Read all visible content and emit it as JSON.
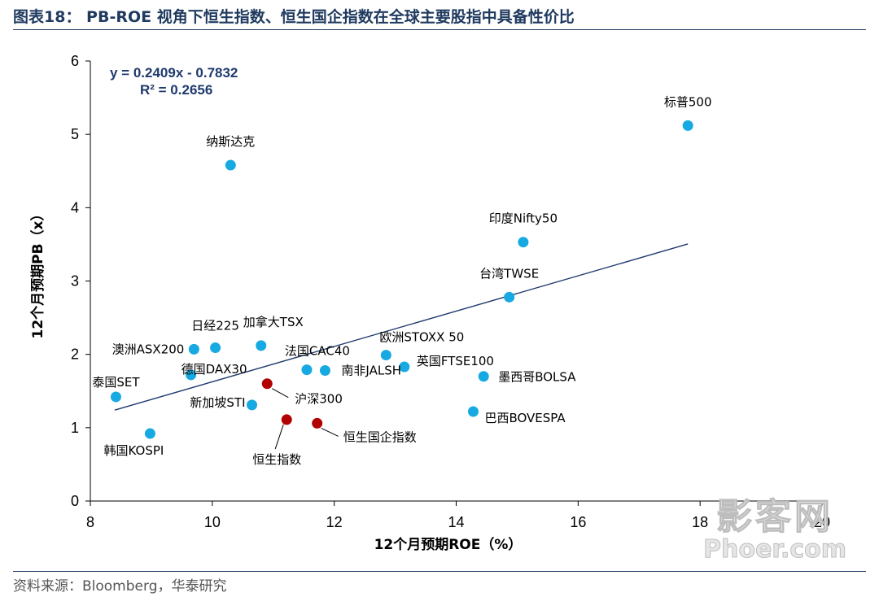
{
  "header": {
    "title": "图表18： PB-ROE 视角下恒生指数、恒生国企指数在全球主要股指中具备性价比"
  },
  "footer": {
    "source": "资料来源：Bloomberg，华泰研究"
  },
  "watermark": {
    "text_cn": "影客网",
    "text_en": "Phoer.com"
  },
  "chart_data": {
    "type": "scatter",
    "xlabel": "12个月预期ROE（%）",
    "ylabel": "12个月预期PB（x）",
    "xlim": [
      8,
      20
    ],
    "ylim": [
      0,
      6
    ],
    "xticks": [
      "8",
      "10",
      "12",
      "14",
      "16",
      "18",
      "20"
    ],
    "yticks": [
      "0",
      "1",
      "2",
      "3",
      "4",
      "5",
      "6"
    ],
    "grid": false,
    "colors": {
      "markets": "#17a9e1",
      "highlight": "#b00000",
      "trendline": "#1f3a6e"
    },
    "trendline": {
      "equation": "y = 0.2409x - 0.7832",
      "r2": "R² = 0.2656",
      "slope": 0.2409,
      "intercept": -0.7832,
      "x_range": [
        8.4,
        17.8
      ]
    },
    "points": [
      {
        "label": "标普500",
        "x": 17.8,
        "y": 5.12,
        "group": "markets"
      },
      {
        "label": "纳斯达克",
        "x": 10.3,
        "y": 4.58,
        "group": "markets"
      },
      {
        "label": "印度Nifty50",
        "x": 15.1,
        "y": 3.53,
        "group": "markets"
      },
      {
        "label": "台湾TWSE",
        "x": 14.87,
        "y": 2.78,
        "group": "markets"
      },
      {
        "label": "加拿大TSX",
        "x": 10.8,
        "y": 2.12,
        "group": "markets"
      },
      {
        "label": "日经225",
        "x": 10.05,
        "y": 2.09,
        "group": "markets"
      },
      {
        "label": "澳洲ASX200",
        "x": 9.7,
        "y": 2.07,
        "group": "markets"
      },
      {
        "label": "欧洲STOXX 50",
        "x": 12.85,
        "y": 1.99,
        "group": "markets"
      },
      {
        "label": "英国FTSE100",
        "x": 13.15,
        "y": 1.83,
        "group": "markets"
      },
      {
        "label": "法国CAC40",
        "x": 11.55,
        "y": 1.79,
        "group": "markets"
      },
      {
        "label": "南非JALSH",
        "x": 11.85,
        "y": 1.78,
        "group": "markets"
      },
      {
        "label": "德国DAX30",
        "x": 9.65,
        "y": 1.72,
        "group": "markets"
      },
      {
        "label": "墨西哥BOLSA",
        "x": 14.45,
        "y": 1.7,
        "group": "markets"
      },
      {
        "label": "泰国SET",
        "x": 8.42,
        "y": 1.42,
        "group": "markets"
      },
      {
        "label": "新加坡STI",
        "x": 10.65,
        "y": 1.31,
        "group": "markets"
      },
      {
        "label": "巴西BOVESPA",
        "x": 14.28,
        "y": 1.22,
        "group": "markets"
      },
      {
        "label": "韩国KOSPI",
        "x": 8.98,
        "y": 0.92,
        "group": "markets"
      },
      {
        "label": "沪深300",
        "x": 10.9,
        "y": 1.6,
        "group": "highlight"
      },
      {
        "label": "恒生指数",
        "x": 11.22,
        "y": 1.11,
        "group": "highlight"
      },
      {
        "label": "恒生国企指数",
        "x": 11.72,
        "y": 1.06,
        "group": "highlight"
      }
    ]
  }
}
